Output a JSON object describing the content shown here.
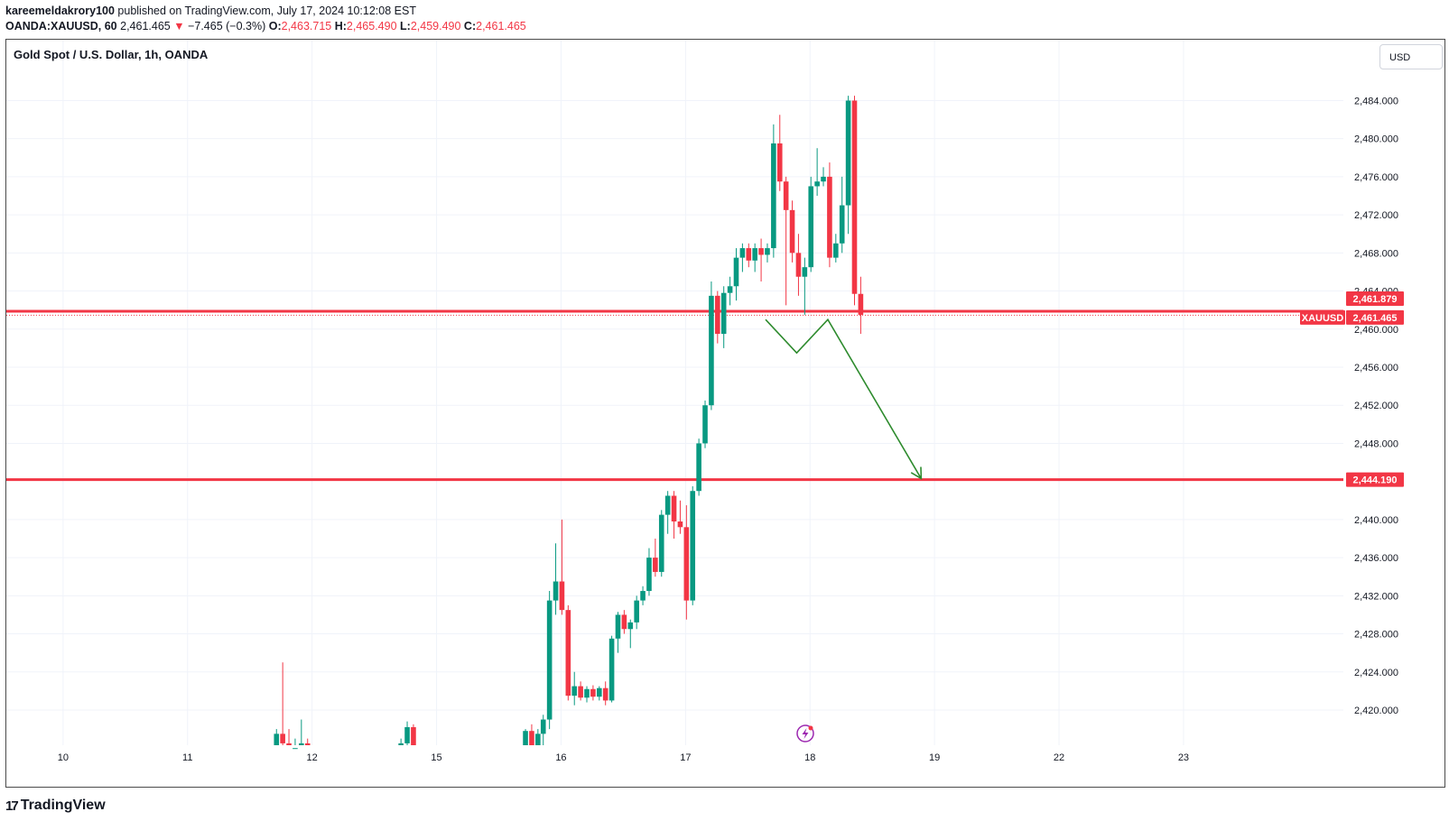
{
  "header": {
    "author": "kareemeldakrory100",
    "published_text": "published on TradingView.com, July 17, 2024 10:12:08 EST",
    "symbol": "OANDA:XAUUSD, 60",
    "last": "2,461.465",
    "arrow": "▼",
    "change": "−7.465 (−0.3%)",
    "o_label": "O:",
    "o_value": "2,463.715",
    "h_label": "H:",
    "h_value": "2,465.490",
    "l_label": "L:",
    "l_value": "2,459.490",
    "c_label": "C:",
    "c_value": "2,461.465"
  },
  "chart_title": "Gold Spot / U.S. Dollar, 1h, OANDA",
  "currency": "USD",
  "footer": {
    "logo_mark": "17",
    "logo_text": "TradingView"
  },
  "colors": {
    "up": "#089981",
    "down": "#f23645",
    "level_line": "#f23645",
    "arrow": "#2e8b2e",
    "grid": "#f0f3fa",
    "badge_text": "#ffffff"
  },
  "icons": {
    "lightning": "lightning-icon",
    "logo": "tradingview-logo-icon"
  },
  "chart_data": {
    "type": "candlestick",
    "title": "Gold Spot / U.S. Dollar, 1h, OANDA",
    "price_axis": {
      "ticks": [
        "2,484.000",
        "2,480.000",
        "2,476.000",
        "2,472.000",
        "2,468.000",
        "2,464.000",
        "2,460.000",
        "2,456.000",
        "2,452.000",
        "2,448.000",
        "2,440.000",
        "2,436.000",
        "2,432.000",
        "2,428.000",
        "2,424.000",
        "2,420.000"
      ],
      "tick_values": [
        2484,
        2480,
        2476,
        2472,
        2468,
        2464,
        2460,
        2456,
        2452,
        2448,
        2440,
        2436,
        2432,
        2428,
        2424,
        2420
      ],
      "range": [
        2415.5,
        2492
      ]
    },
    "time_axis": {
      "labels": [
        "10",
        "11",
        "12",
        "15",
        "16",
        "17",
        "18",
        "19",
        "22",
        "23"
      ],
      "label_index": [
        -59,
        -45,
        -31,
        -17,
        -3,
        11,
        25,
        39,
        53,
        67
      ]
    },
    "levels": [
      {
        "price": 2461.879,
        "label": "2,461.879"
      },
      {
        "price": 2444.19,
        "label": "2,444.190"
      }
    ],
    "last_price": {
      "symbol": "XAUUSD",
      "price": 2461.465,
      "label": "2,461.465"
    },
    "projection": [
      {
        "i": 20,
        "p": 2461
      },
      {
        "i": 23.5,
        "p": 2457.5
      },
      {
        "i": 27,
        "p": 2461
      },
      {
        "i": 37.5,
        "p": 2444.3
      }
    ],
    "candles": [
      {
        "i": -35,
        "o": 2416,
        "h": 2418,
        "l": 2415.5,
        "c": 2417.5
      },
      {
        "i": -34.3,
        "o": 2417.5,
        "h": 2425,
        "l": 2415.5,
        "c": 2416.5
      },
      {
        "i": -33.6,
        "o": 2416.5,
        "h": 2418,
        "l": 2415.5,
        "c": 2415.8
      },
      {
        "i": -32.9,
        "o": 2415.8,
        "h": 2417,
        "l": 2415.5,
        "c": 2416
      },
      {
        "i": -32.2,
        "o": 2416,
        "h": 2419,
        "l": 2415.5,
        "c": 2416.5
      },
      {
        "i": -31.5,
        "o": 2416.5,
        "h": 2417,
        "l": 2415.5,
        "c": 2415.8
      },
      {
        "i": -21,
        "o": 2416,
        "h": 2417,
        "l": 2415.5,
        "c": 2416.5
      },
      {
        "i": -20.3,
        "o": 2416.5,
        "h": 2418.8,
        "l": 2416,
        "c": 2418.2
      },
      {
        "i": -19.6,
        "o": 2418.2,
        "h": 2418.5,
        "l": 2416,
        "c": 2416.2
      },
      {
        "i": -7,
        "o": 2415.5,
        "h": 2418,
        "l": 2415.5,
        "c": 2417.8
      },
      {
        "i": -6.3,
        "o": 2417.8,
        "h": 2418.5,
        "l": 2415.5,
        "c": 2416
      },
      {
        "i": -5.6,
        "o": 2416,
        "h": 2418,
        "l": 2415.5,
        "c": 2417.5
      },
      {
        "i": -5,
        "o": 2417.5,
        "h": 2419.5,
        "l": 2416,
        "c": 2419
      },
      {
        "i": -4.3,
        "o": 2419,
        "h": 2432.5,
        "l": 2418,
        "c": 2431.5
      },
      {
        "i": -3.6,
        "o": 2431.5,
        "h": 2437.5,
        "l": 2430,
        "c": 2433.5
      },
      {
        "i": -2.9,
        "o": 2433.5,
        "h": 2440,
        "l": 2430,
        "c": 2430.5
      },
      {
        "i": -2.2,
        "o": 2430.5,
        "h": 2431,
        "l": 2421,
        "c": 2421.5
      },
      {
        "i": -1.5,
        "o": 2421.5,
        "h": 2424,
        "l": 2420.5,
        "c": 2422.5
      },
      {
        "i": -0.8,
        "o": 2422.5,
        "h": 2423,
        "l": 2421,
        "c": 2421.3
      },
      {
        "i": -0.1,
        "o": 2421.3,
        "h": 2422.5,
        "l": 2420.8,
        "c": 2422.2
      },
      {
        "i": 0.6,
        "o": 2422.2,
        "h": 2422.6,
        "l": 2421,
        "c": 2421.4
      },
      {
        "i": 1.3,
        "o": 2421.4,
        "h": 2422.5,
        "l": 2421,
        "c": 2422.3
      },
      {
        "i": 2,
        "o": 2422.3,
        "h": 2423,
        "l": 2420.5,
        "c": 2421
      },
      {
        "i": 2.7,
        "o": 2421,
        "h": 2427.8,
        "l": 2420.8,
        "c": 2427.5
      },
      {
        "i": 3.4,
        "o": 2427.5,
        "h": 2430.3,
        "l": 2426,
        "c": 2430
      },
      {
        "i": 4.1,
        "o": 2430,
        "h": 2430.5,
        "l": 2428,
        "c": 2428.5
      },
      {
        "i": 4.8,
        "o": 2428.5,
        "h": 2429.5,
        "l": 2426.5,
        "c": 2429.2
      },
      {
        "i": 5.5,
        "o": 2429.2,
        "h": 2432,
        "l": 2428.5,
        "c": 2431.5
      },
      {
        "i": 6.2,
        "o": 2431.5,
        "h": 2433,
        "l": 2431,
        "c": 2432.5
      },
      {
        "i": 6.9,
        "o": 2432.5,
        "h": 2437,
        "l": 2432,
        "c": 2436
      },
      {
        "i": 7.6,
        "o": 2436,
        "h": 2438,
        "l": 2434,
        "c": 2434.5
      },
      {
        "i": 8.3,
        "o": 2434.5,
        "h": 2441,
        "l": 2434,
        "c": 2440.5
      },
      {
        "i": 9,
        "o": 2440.5,
        "h": 2443,
        "l": 2438.5,
        "c": 2442.5
      },
      {
        "i": 9.7,
        "o": 2442.5,
        "h": 2443,
        "l": 2438,
        "c": 2439.8
      },
      {
        "i": 10.4,
        "o": 2439.8,
        "h": 2442,
        "l": 2438.5,
        "c": 2439.2
      },
      {
        "i": 11.1,
        "o": 2439.2,
        "h": 2441.5,
        "l": 2429.5,
        "c": 2431.5
      },
      {
        "i": 11.8,
        "o": 2431.5,
        "h": 2443.5,
        "l": 2431,
        "c": 2443
      },
      {
        "i": 12.5,
        "o": 2443,
        "h": 2448.5,
        "l": 2442.5,
        "c": 2448
      },
      {
        "i": 13.2,
        "o": 2448,
        "h": 2452.5,
        "l": 2447.5,
        "c": 2452
      },
      {
        "i": 13.9,
        "o": 2452,
        "h": 2465,
        "l": 2451.5,
        "c": 2463.5
      },
      {
        "i": 14.6,
        "o": 2463.5,
        "h": 2464,
        "l": 2458.5,
        "c": 2459.5
      },
      {
        "i": 15.3,
        "o": 2459.5,
        "h": 2464.5,
        "l": 2458,
        "c": 2463.8
      },
      {
        "i": 16,
        "o": 2463.8,
        "h": 2465.5,
        "l": 2462.5,
        "c": 2464.5
      },
      {
        "i": 16.7,
        "o": 2464.5,
        "h": 2468.5,
        "l": 2463,
        "c": 2467.5
      },
      {
        "i": 17.4,
        "o": 2467.5,
        "h": 2469,
        "l": 2466,
        "c": 2468.5
      },
      {
        "i": 18.1,
        "o": 2468.5,
        "h": 2469,
        "l": 2466.5,
        "c": 2467.2
      },
      {
        "i": 18.8,
        "o": 2467.2,
        "h": 2469,
        "l": 2466,
        "c": 2468.5
      },
      {
        "i": 19.5,
        "o": 2468.5,
        "h": 2469.5,
        "l": 2465,
        "c": 2467.8
      },
      {
        "i": 20.2,
        "o": 2467.8,
        "h": 2469,
        "l": 2467,
        "c": 2468.5
      },
      {
        "i": 20.9,
        "o": 2468.5,
        "h": 2481.5,
        "l": 2467.5,
        "c": 2479.5
      },
      {
        "i": 21.6,
        "o": 2479.5,
        "h": 2482.5,
        "l": 2474.5,
        "c": 2475.5
      },
      {
        "i": 22.3,
        "o": 2475.5,
        "h": 2476,
        "l": 2462.5,
        "c": 2472.5
      },
      {
        "i": 23,
        "o": 2472.5,
        "h": 2473.5,
        "l": 2467,
        "c": 2468
      },
      {
        "i": 23.7,
        "o": 2468,
        "h": 2470,
        "l": 2463.5,
        "c": 2465.5
      },
      {
        "i": 24.4,
        "o": 2465.5,
        "h": 2467.5,
        "l": 2461.5,
        "c": 2466.5
      },
      {
        "i": 25.1,
        "o": 2466.5,
        "h": 2476,
        "l": 2466,
        "c": 2475
      },
      {
        "i": 25.8,
        "o": 2475,
        "h": 2479,
        "l": 2474,
        "c": 2475.5
      },
      {
        "i": 26.5,
        "o": 2475.5,
        "h": 2477,
        "l": 2475,
        "c": 2476
      },
      {
        "i": 27.2,
        "o": 2476,
        "h": 2477.5,
        "l": 2466.5,
        "c": 2467.5
      },
      {
        "i": 27.9,
        "o": 2467.5,
        "h": 2470,
        "l": 2467,
        "c": 2469
      },
      {
        "i": 28.6,
        "o": 2469,
        "h": 2476,
        "l": 2468,
        "c": 2473
      },
      {
        "i": 29.3,
        "o": 2473,
        "h": 2484.5,
        "l": 2470,
        "c": 2484
      },
      {
        "i": 30,
        "o": 2484,
        "h": 2484.5,
        "l": 2462.5,
        "c": 2463.7
      },
      {
        "i": 30.7,
        "o": 2463.7,
        "h": 2465.5,
        "l": 2459.5,
        "c": 2461.5
      }
    ]
  }
}
